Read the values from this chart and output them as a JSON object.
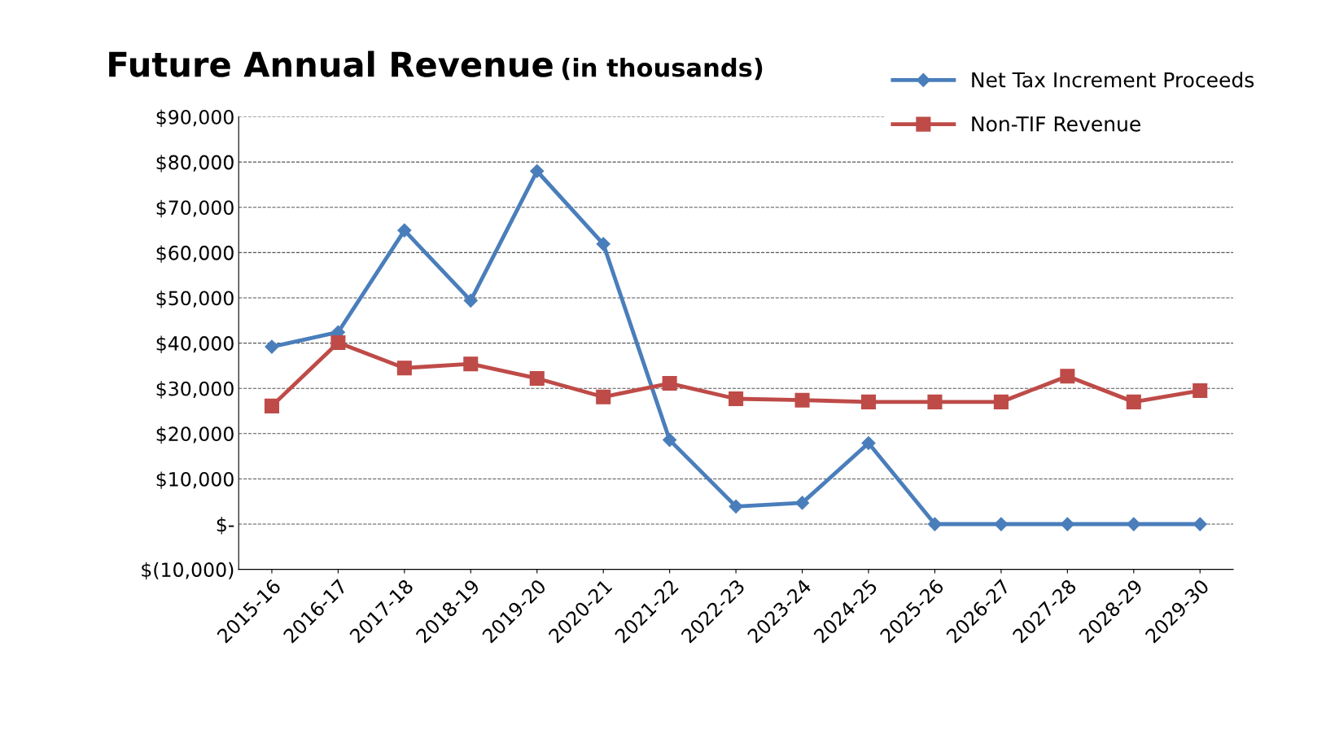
{
  "chart_data": {
    "type": "line",
    "title": "Future Annual Revenue",
    "subtitle": "(in thousands)",
    "categories": [
      "2015-16",
      "2016-17",
      "2017-18",
      "2018-19",
      "2019-20",
      "2020-21",
      "2021-22",
      "2022-23",
      "2023-24",
      "2024-25",
      "2025-26",
      "2026-27",
      "2027-28",
      "2028-29",
      "2029-30"
    ],
    "series": [
      {
        "name": "Net Tax Increment Proceeds",
        "color": "#4a7ebb",
        "marker": "diamond",
        "values": [
          39200,
          42400,
          64900,
          49400,
          78000,
          61900,
          18600,
          3900,
          4700,
          17900,
          0,
          0,
          0,
          0,
          0
        ]
      },
      {
        "name": "Non-TIF Revenue",
        "color": "#be4b48",
        "marker": "square",
        "values": [
          26100,
          40100,
          34500,
          35400,
          32200,
          28100,
          31100,
          27700,
          27400,
          27000,
          27000,
          27000,
          32700,
          27000,
          29500
        ]
      }
    ],
    "ylim": [
      -10000,
      90000
    ],
    "yticks": [
      {
        "value": -10000,
        "label": "$(10,000)"
      },
      {
        "value": 0,
        "label": "$-"
      },
      {
        "value": 10000,
        "label": "$10,000"
      },
      {
        "value": 20000,
        "label": "$20,000"
      },
      {
        "value": 30000,
        "label": "$30,000"
      },
      {
        "value": 40000,
        "label": "$40,000"
      },
      {
        "value": 50000,
        "label": "$50,000"
      },
      {
        "value": 60000,
        "label": "$60,000"
      },
      {
        "value": 70000,
        "label": "$70,000"
      },
      {
        "value": 80000,
        "label": "$80,000"
      },
      {
        "value": 90000,
        "label": "$90,000"
      }
    ],
    "grid": "y",
    "legend": "top right",
    "line_style": "solid"
  }
}
